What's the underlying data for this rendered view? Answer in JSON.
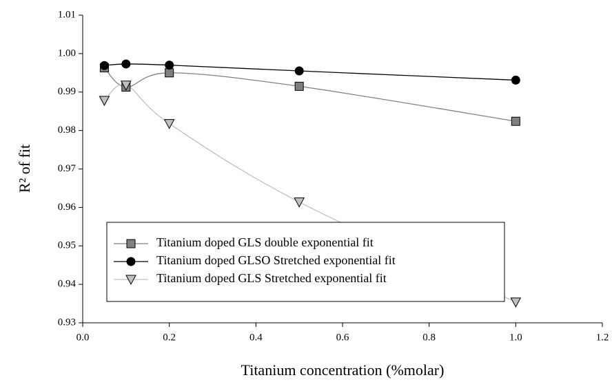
{
  "chart_data": {
    "type": "line",
    "xlabel": "Titanium concentration (%molar)",
    "ylabel": "R² of fit",
    "x": [
      0.05,
      0.1,
      0.2,
      0.5,
      1.0
    ],
    "series": [
      {
        "name": "Titanium doped GLS double exponential fit",
        "color": "#808080",
        "marker": "square",
        "values": [
          0.9963,
          0.9913,
          0.995,
          0.9915,
          0.9824
        ]
      },
      {
        "name": "Titanium doped GLSO Stretched exponential fit",
        "color": "#000000",
        "marker": "circle",
        "values": [
          0.9969,
          0.9973,
          0.997,
          0.9955,
          0.9931
        ]
      },
      {
        "name": "Titanium doped GLS Stretched exponential fit",
        "color": "#c0c0c0",
        "marker": "triangle-down",
        "values": [
          0.9878,
          0.9918,
          0.9818,
          0.9614,
          0.9354
        ]
      }
    ],
    "xlim": [
      0,
      1.2
    ],
    "xticks": [
      {
        "value": 0,
        "label": "0.0"
      },
      0.2,
      0.4,
      0.6,
      0.8,
      {
        "value": 1,
        "label": "1.0"
      },
      1.2
    ],
    "ylim": [
      0.93,
      1.01
    ],
    "yticks": [
      0.93,
      0.94,
      0.95,
      0.96,
      0.97,
      0.98,
      0.99,
      {
        "value": 1,
        "label": "1.00"
      },
      1.01
    ],
    "legend": "lower left"
  }
}
